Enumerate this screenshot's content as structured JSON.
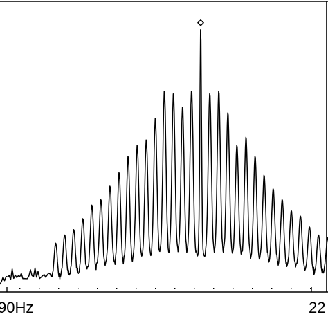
{
  "chart_data": {
    "type": "line",
    "title": "",
    "xlabel": "",
    "ylabel": "",
    "grid": false,
    "legend": "none",
    "line_color": "#000000",
    "x_tick_labels": [
      "90Hz",
      "22"
    ],
    "ylim": [
      0,
      1.0
    ],
    "peak_marker": {
      "x": 0.0,
      "y": 0.96
    },
    "comb": {
      "offsets": [
        -16,
        -15,
        -14,
        -13,
        -12,
        -11,
        -10,
        -9,
        -8,
        -7,
        -6,
        -5,
        -4,
        -3,
        -2,
        -1,
        0,
        1,
        2,
        3,
        4,
        5,
        6,
        7,
        8,
        9,
        10,
        11,
        12,
        13,
        14,
        15,
        16
      ],
      "peak_heights": [
        0.16,
        0.19,
        0.21,
        0.25,
        0.3,
        0.32,
        0.37,
        0.42,
        0.48,
        0.52,
        0.54,
        0.62,
        0.72,
        0.71,
        0.66,
        0.72,
        0.96,
        0.71,
        0.72,
        0.64,
        0.52,
        0.55,
        0.48,
        0.41,
        0.36,
        0.32,
        0.28,
        0.26,
        0.22,
        0.19,
        0.18,
        0.16,
        0.14
      ],
      "trough_levels": [
        0.03,
        0.04,
        0.04,
        0.05,
        0.06,
        0.07,
        0.08,
        0.08,
        0.09,
        0.1,
        0.1,
        0.11,
        0.12,
        0.12,
        0.12,
        0.12,
        0.12,
        0.12,
        0.12,
        0.12,
        0.11,
        0.11,
        0.1,
        0.1,
        0.09,
        0.08,
        0.07,
        0.07,
        0.06,
        0.05,
        0.05,
        0.04,
        0.04
      ]
    }
  }
}
